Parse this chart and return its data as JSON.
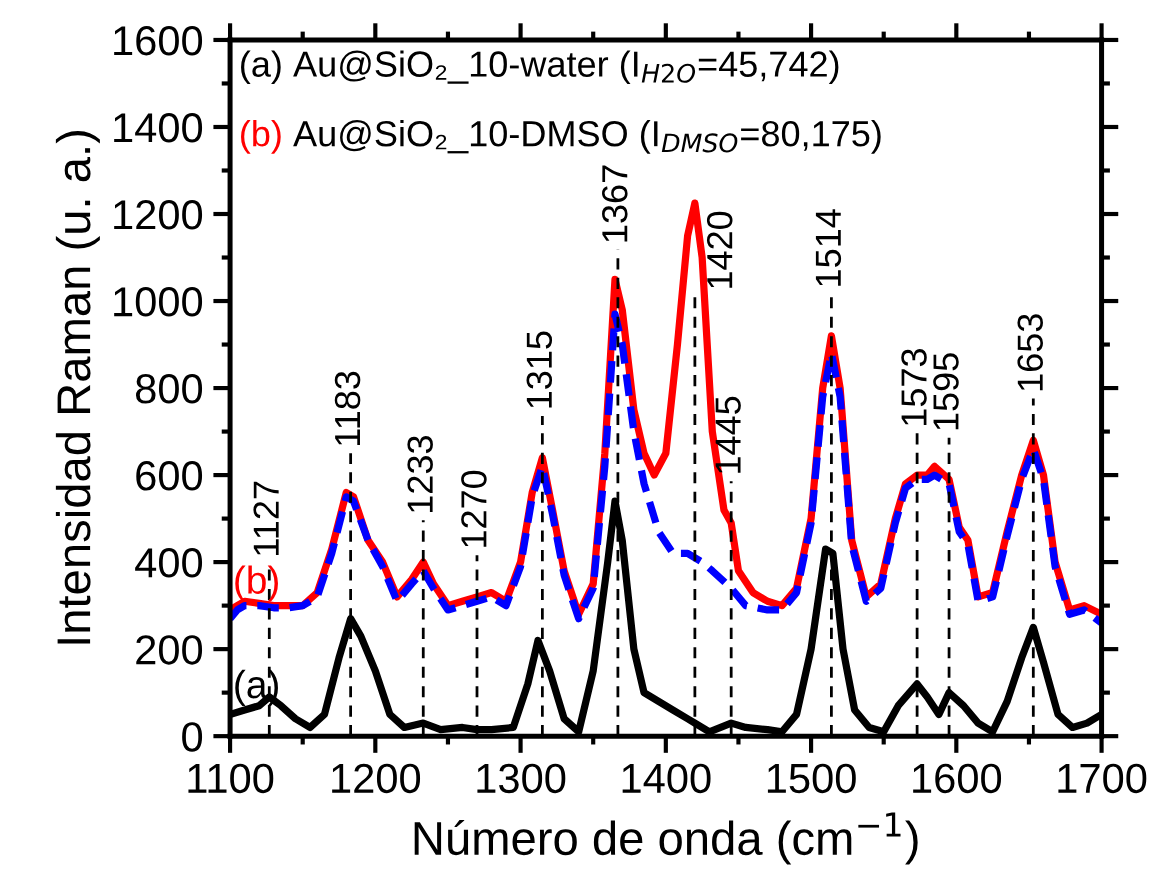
{
  "chart_data": {
    "type": "line",
    "xlabel": "Número de onda (cm$^{−1}$)",
    "ylabel": "Intensidad Raman (u. a.)",
    "xlim": [
      1100,
      1700
    ],
    "xticks": [
      1100,
      1200,
      1300,
      1400,
      1500,
      1600,
      1700
    ],
    "ylim": [
      0,
      1600
    ],
    "yticks": [
      0,
      200,
      400,
      600,
      800,
      1000,
      1200,
      1400,
      1600
    ],
    "grid": false,
    "series": [
      {
        "name": "(a)",
        "color": "#000000",
        "line_style": "solid",
        "x": [
          1100,
          1110,
          1120,
          1127,
          1135,
          1145,
          1155,
          1165,
          1175,
          1183,
          1190,
          1200,
          1210,
          1220,
          1233,
          1245,
          1260,
          1270,
          1280,
          1295,
          1305,
          1312,
          1320,
          1330,
          1340,
          1350,
          1360,
          1365,
          1370,
          1378,
          1385,
          1395,
          1405,
          1415,
          1420,
          1430,
          1445,
          1455,
          1470,
          1480,
          1490,
          1500,
          1510,
          1515,
          1522,
          1530,
          1540,
          1550,
          1560,
          1573,
          1580,
          1588,
          1595,
          1605,
          1615,
          1625,
          1635,
          1645,
          1653,
          1660,
          1670,
          1680,
          1690,
          1700
        ],
        "values": [
          50,
          60,
          70,
          90,
          70,
          40,
          20,
          50,
          180,
          270,
          230,
          150,
          50,
          20,
          30,
          15,
          20,
          15,
          15,
          20,
          120,
          220,
          150,
          40,
          10,
          150,
          400,
          540,
          450,
          200,
          100,
          80,
          60,
          40,
          30,
          10,
          30,
          20,
          15,
          10,
          50,
          200,
          430,
          420,
          200,
          60,
          20,
          10,
          70,
          120,
          90,
          50,
          100,
          70,
          30,
          10,
          80,
          180,
          250,
          170,
          50,
          20,
          30,
          50
        ]
      },
      {
        "name": "(b)",
        "color": "#ff0000",
        "line_style": "solid",
        "x": [
          1100,
          1105,
          1110,
          1120,
          1130,
          1140,
          1150,
          1160,
          1170,
          1180,
          1185,
          1195,
          1205,
          1215,
          1225,
          1233,
          1240,
          1250,
          1260,
          1270,
          1280,
          1290,
          1300,
          1308,
          1315,
          1322,
          1330,
          1340,
          1350,
          1358,
          1365,
          1370,
          1378,
          1385,
          1392,
          1400,
          1408,
          1415,
          1420,
          1425,
          1432,
          1440,
          1445,
          1450,
          1460,
          1470,
          1480,
          1490,
          1500,
          1508,
          1514,
          1520,
          1528,
          1538,
          1548,
          1558,
          1565,
          1573,
          1580,
          1585,
          1595,
          1602,
          1608,
          1615,
          1625,
          1635,
          1645,
          1653,
          1660,
          1668,
          1678,
          1688,
          1700
        ],
        "values": [
          290,
          300,
          310,
          305,
          300,
          300,
          300,
          330,
          430,
          560,
          550,
          450,
          400,
          320,
          360,
          400,
          350,
          300,
          310,
          320,
          330,
          310,
          400,
          560,
          640,
          520,
          380,
          280,
          350,
          650,
          1050,
          980,
          750,
          650,
          600,
          650,
          900,
          1150,
          1225,
          1100,
          700,
          520,
          490,
          380,
          330,
          310,
          300,
          340,
          500,
          800,
          920,
          800,
          450,
          320,
          350,
          500,
          580,
          600,
          600,
          620,
          590,
          480,
          450,
          320,
          330,
          470,
          600,
          680,
          600,
          400,
          290,
          300,
          280
        ]
      },
      {
        "color": "#0000ff",
        "line_style": "dashed",
        "x": [
          1100,
          1105,
          1110,
          1120,
          1130,
          1140,
          1150,
          1160,
          1170,
          1180,
          1185,
          1195,
          1205,
          1215,
          1225,
          1233,
          1240,
          1250,
          1260,
          1270,
          1280,
          1290,
          1300,
          1308,
          1315,
          1322,
          1330,
          1340,
          1350,
          1358,
          1365,
          1370,
          1378,
          1385,
          1395,
          1405,
          1415,
          1425,
          1432,
          1445,
          1455,
          1470,
          1480,
          1490,
          1500,
          1508,
          1514,
          1520,
          1528,
          1538,
          1548,
          1558,
          1565,
          1573,
          1580,
          1585,
          1595,
          1602,
          1608,
          1615,
          1625,
          1635,
          1645,
          1653,
          1660,
          1668,
          1678,
          1688,
          1700
        ],
        "values": [
          270,
          290,
          300,
          300,
          295,
          295,
          300,
          320,
          420,
          550,
          540,
          450,
          390,
          310,
          350,
          380,
          340,
          290,
          300,
          310,
          320,
          300,
          390,
          550,
          620,
          510,
          370,
          270,
          340,
          620,
          970,
          900,
          700,
          580,
          470,
          420,
          420,
          400,
          380,
          340,
          300,
          290,
          290,
          330,
          490,
          780,
          880,
          780,
          440,
          310,
          340,
          490,
          570,
          590,
          590,
          600,
          580,
          470,
          440,
          310,
          320,
          460,
          590,
          660,
          590,
          390,
          280,
          290,
          260
        ]
      }
    ],
    "annotations": [
      "Au@SiO₂_10-water (I$_{H2O}$=45,742)",
      "Au@SiO₂_10-DMSO (I$_{DMSO}$=80,175)"
    ],
    "ref_lines": [
      {
        "axis": "x",
        "value": 1127,
        "label": "1127",
        "line_style": "dashed"
      },
      {
        "axis": "x",
        "value": 1183,
        "label": "1183",
        "line_style": "dashed"
      },
      {
        "axis": "x",
        "value": 1233,
        "label": "1233",
        "line_style": "dashed"
      },
      {
        "axis": "x",
        "value": 1270,
        "label": "1270",
        "line_style": "dashed"
      },
      {
        "axis": "x",
        "value": 1315,
        "label": "1315",
        "line_style": "dashed"
      },
      {
        "axis": "x",
        "value": 1367,
        "label": "1367",
        "line_style": "dashed"
      },
      {
        "axis": "x",
        "value": 1420,
        "label": "1420",
        "line_style": "dashed"
      },
      {
        "axis": "x",
        "value": 1445,
        "label": "1445",
        "line_style": "dashed"
      },
      {
        "axis": "x",
        "value": 1514,
        "label": "1514",
        "line_style": "dashed"
      },
      {
        "axis": "x",
        "value": 1573,
        "label": "1573",
        "line_style": "dashed"
      },
      {
        "axis": "x",
        "value": 1595,
        "label": "1595",
        "line_style": "dashed"
      },
      {
        "axis": "x",
        "value": 1653,
        "label": "1653",
        "line_style": "dashed"
      }
    ]
  }
}
